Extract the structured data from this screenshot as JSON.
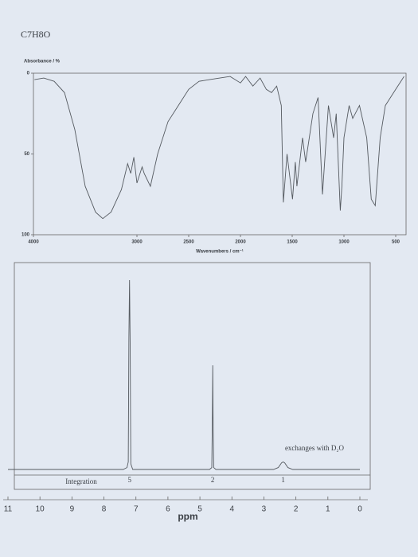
{
  "header": {
    "title": "C7H8O"
  },
  "chart_data": [
    {
      "type": "line",
      "ylabel": "Absorbance / %",
      "xlabel": "Wavenumbers / cm⁻¹",
      "xlim": [
        4000,
        400
      ],
      "xticks": [
        4000,
        3000,
        2500,
        2000,
        1500,
        1000,
        500
      ],
      "ylim": [
        100,
        0
      ],
      "yticks": [
        0,
        50,
        100
      ],
      "color": "#555a60",
      "x": [
        3990,
        3900,
        3800,
        3700,
        3600,
        3500,
        3400,
        3330,
        3250,
        3150,
        3090,
        3060,
        3030,
        3000,
        2950,
        2930,
        2870,
        2800,
        2700,
        2600,
        2500,
        2400,
        2300,
        2200,
        2100,
        2000,
        1950,
        1880,
        1810,
        1750,
        1700,
        1650,
        1605,
        1585,
        1550,
        1497,
        1470,
        1455,
        1400,
        1370,
        1300,
        1250,
        1208,
        1150,
        1100,
        1075,
        1035,
        1020,
        1000,
        950,
        915,
        850,
        780,
        736,
        698,
        650,
        600,
        500,
        450,
        420
      ],
      "values": [
        4,
        3,
        5,
        12,
        35,
        70,
        86,
        90,
        86,
        72,
        56,
        62,
        52,
        68,
        58,
        62,
        70,
        50,
        30,
        20,
        10,
        5,
        4,
        3,
        2,
        6,
        2,
        8,
        3,
        10,
        12,
        8,
        20,
        80,
        50,
        78,
        55,
        70,
        40,
        55,
        25,
        15,
        75,
        20,
        40,
        25,
        85,
        70,
        40,
        20,
        28,
        20,
        40,
        78,
        82,
        40,
        20,
        10,
        5,
        2
      ]
    },
    {
      "type": "line",
      "xlabel": "ppm",
      "xlim": [
        11,
        0
      ],
      "xticks": [
        11,
        10,
        9,
        8,
        7,
        6,
        5,
        4,
        3,
        2,
        1,
        0
      ],
      "color": "#555a60",
      "x": [
        11,
        7.4,
        7.28,
        7.24,
        7.22,
        7.2,
        7.18,
        7.16,
        7.1,
        4.7,
        4.63,
        4.61,
        4.6,
        4.59,
        4.57,
        4.5,
        2.7,
        2.55,
        2.45,
        2.4,
        2.35,
        2.25,
        2.1,
        0
      ],
      "values": [
        0,
        0,
        1,
        4,
        70,
        100,
        65,
        3,
        0,
        0,
        1,
        30,
        55,
        28,
        1,
        0,
        0,
        1,
        3.5,
        4,
        3.5,
        1,
        0,
        0
      ],
      "annotations": [
        "exchanges with D₂O"
      ],
      "integration": {
        "label": "Integration",
        "x": [
          7.2,
          4.6,
          2.4
        ],
        "values": [
          5,
          2,
          1
        ]
      }
    }
  ]
}
